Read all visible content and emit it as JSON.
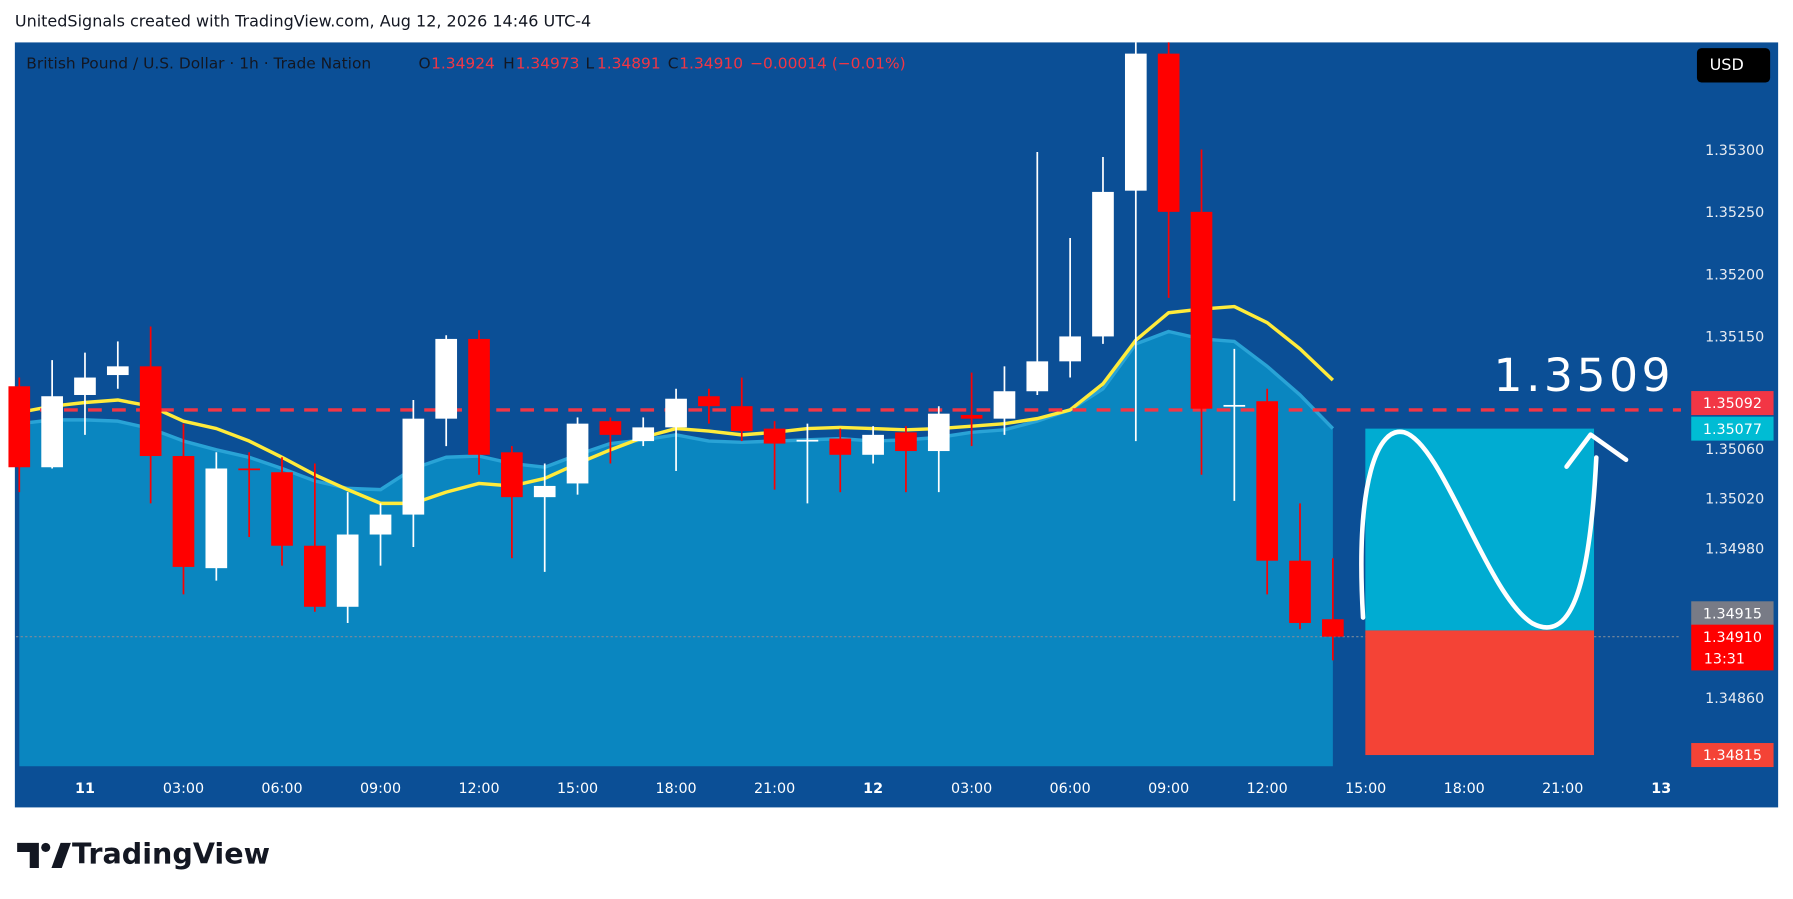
{
  "attribution": "UnitedSignals created with TradingView.com, Aug 12, 2026 14:46 UTC-4",
  "brand": "TradingView",
  "chart_data": {
    "type": "candlestick",
    "title": "British Pound / U.S. Dollar · 1h · Trade Nation",
    "ohlc_letters": [
      "O",
      "H",
      "L",
      "C"
    ],
    "legend_values": [
      "1.34924",
      "1.34973",
      "1.34891",
      "1.34910"
    ],
    "change": "−0.00014 (−0.01%)",
    "currency": "USD",
    "annotation": "1.3509",
    "up_color": "#ffffff",
    "down_color": "#ff0000",
    "x": [
      -2,
      -1,
      0,
      1,
      2,
      3,
      4,
      5,
      6,
      7,
      8,
      9,
      10,
      11,
      12,
      13,
      14,
      15,
      16,
      17,
      18,
      19,
      20,
      21,
      22,
      23,
      24,
      25,
      26,
      27,
      28,
      29,
      30,
      31,
      32,
      33,
      34,
      35,
      36,
      37,
      38
    ],
    "open": [
      1.35111,
      1.35046,
      1.35104,
      1.3512,
      1.35127,
      1.35055,
      1.34965,
      1.35045,
      1.35042,
      1.34983,
      1.34934,
      1.34992,
      1.35008,
      1.35085,
      1.35149,
      1.35058,
      1.35022,
      1.35033,
      1.35083,
      1.35067,
      1.35078,
      1.35103,
      1.35095,
      1.35077,
      1.35067,
      1.35069,
      1.35056,
      1.35074,
      1.35059,
      1.35088,
      1.35085,
      1.35107,
      1.35131,
      1.35151,
      1.35268,
      1.35378,
      1.35251,
      1.35095,
      1.35099,
      1.34971,
      1.34924
    ],
    "high": [
      1.35118,
      1.35132,
      1.35138,
      1.35147,
      1.35159,
      1.35081,
      1.35058,
      1.35058,
      1.35054,
      1.35049,
      1.35026,
      1.35017,
      1.351,
      1.35152,
      1.35156,
      1.35063,
      1.35049,
      1.35086,
      1.35086,
      1.35086,
      1.35109,
      1.35109,
      1.35118,
      1.35083,
      1.35081,
      1.35077,
      1.35079,
      1.35079,
      1.35095,
      1.35122,
      1.35127,
      1.35299,
      1.3523,
      1.35295,
      1.35387,
      1.35387,
      1.35301,
      1.35141,
      1.35109,
      1.35017,
      1.34973
    ],
    "low": [
      1.35026,
      1.35045,
      1.35072,
      1.35109,
      1.35017,
      1.34944,
      1.34955,
      1.3499,
      1.34967,
      1.3493,
      1.34921,
      1.34967,
      1.34982,
      1.35063,
      1.3504,
      1.34973,
      1.34962,
      1.35024,
      1.35049,
      1.35063,
      1.35043,
      1.35081,
      1.35067,
      1.35028,
      1.35017,
      1.35026,
      1.35049,
      1.35026,
      1.35026,
      1.35063,
      1.35072,
      1.35104,
      1.35118,
      1.35145,
      1.35067,
      1.35182,
      1.3504,
      1.35019,
      1.34944,
      1.34916,
      1.34891
    ],
    "close": [
      1.35046,
      1.35103,
      1.35118,
      1.35127,
      1.35055,
      1.34966,
      1.35045,
      1.35044,
      1.34983,
      1.34934,
      1.34992,
      1.35008,
      1.35085,
      1.35149,
      1.35056,
      1.35022,
      1.35031,
      1.35081,
      1.35072,
      1.35078,
      1.35101,
      1.35095,
      1.35075,
      1.35065,
      1.35068,
      1.35056,
      1.35072,
      1.35059,
      1.35089,
      1.35085,
      1.35107,
      1.35131,
      1.35151,
      1.35267,
      1.35378,
      1.35251,
      1.35093,
      1.35096,
      1.34971,
      1.34921,
      1.3491
    ],
    "lines": [
      {
        "color": "#29a3d6",
        "area": "#0a86c0",
        "values": [
          1.35081,
          1.35084,
          1.35084,
          1.35083,
          1.35077,
          1.35067,
          1.3506,
          1.35054,
          1.35045,
          1.35035,
          1.35029,
          1.35028,
          1.35045,
          1.35054,
          1.35055,
          1.35049,
          1.35046,
          1.35056,
          1.35065,
          1.35068,
          1.35072,
          1.35067,
          1.35066,
          1.35067,
          1.35068,
          1.35069,
          1.35067,
          1.35068,
          1.3507,
          1.35074,
          1.35076,
          1.35083,
          1.35092,
          1.35109,
          1.35145,
          1.35155,
          1.35149,
          1.35147,
          1.35127,
          1.35104,
          1.35077
        ]
      },
      {
        "color": "#ffeb3b",
        "values": [
          1.3509,
          1.35095,
          1.35098,
          1.351,
          1.35095,
          1.35083,
          1.35077,
          1.35067,
          1.35054,
          1.3504,
          1.35028,
          1.35017,
          1.35017,
          1.35026,
          1.35033,
          1.35031,
          1.35037,
          1.35049,
          1.3506,
          1.3507,
          1.35077,
          1.35075,
          1.35072,
          1.35074,
          1.35077,
          1.35078,
          1.35077,
          1.35076,
          1.35077,
          1.35079,
          1.35081,
          1.35085,
          1.35092,
          1.35113,
          1.35148,
          1.3517,
          1.35173,
          1.35175,
          1.35162,
          1.35141,
          1.35116
        ]
      }
    ],
    "price_tags": [
      {
        "value": 1.35092,
        "color": "#f23645",
        "line": "dashed"
      },
      {
        "value": 1.35077,
        "color": "#00bcd4"
      },
      {
        "value": 1.34915,
        "color": "#787b86"
      },
      {
        "value": {
          "value": 1.3491,
          "label": "1.34910"
        },
        "color": "#ff0000",
        "line": "dotted",
        "countdown": "13:31"
      },
      {
        "value": 1.34815,
        "color": "#f44336"
      }
    ],
    "projection": {
      "top": 1.35077,
      "entry": 1.34915,
      "bottom": 1.34815,
      "top_color": "#00acd2",
      "bottom_color": "#f44336"
    },
    "xlim": [
      -2.1,
      48.6
    ],
    "ylim": [
      1.34806,
      1.35387
    ],
    "grid": false,
    "xticks": [
      {
        "value": 0,
        "label": "11"
      },
      {
        "value": 3,
        "label": "03:00"
      },
      {
        "value": 6,
        "label": "06:00"
      },
      {
        "value": 9,
        "label": "09:00"
      },
      {
        "value": 12,
        "label": "12:00"
      },
      {
        "value": 15,
        "label": "15:00"
      },
      {
        "value": 18,
        "label": "18:00"
      },
      {
        "value": 21,
        "label": "21:00"
      },
      {
        "value": 24,
        "label": "12"
      },
      {
        "value": 27,
        "label": "03:00"
      },
      {
        "value": 30,
        "label": "06:00"
      },
      {
        "value": 33,
        "label": "09:00"
      },
      {
        "value": 36,
        "label": "12:00"
      },
      {
        "value": 39,
        "label": "15:00"
      },
      {
        "value": 42,
        "label": "18:00"
      },
      {
        "value": 45,
        "label": "21:00"
      },
      {
        "value": 48,
        "label": "13"
      }
    ],
    "yticks": [
      {
        "value": 1.353,
        "label": "1.35300"
      },
      {
        "value": 1.3525,
        "label": "1.35250"
      },
      {
        "value": 1.352,
        "label": "1.35200"
      },
      {
        "value": 1.3515,
        "label": "1.35150"
      },
      {
        "value": 1.3506,
        "label": "1.35060"
      },
      {
        "value": 1.3502,
        "label": "1.35020"
      },
      {
        "value": 1.3498,
        "label": "1.34980"
      },
      {
        "value": 1.3486,
        "label": "1.34860"
      }
    ]
  }
}
